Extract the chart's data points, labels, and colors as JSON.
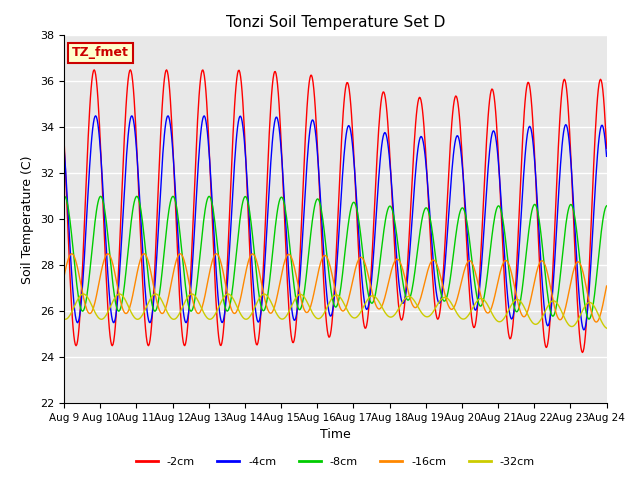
{
  "title": "Tonzi Soil Temperature Set D",
  "xlabel": "Time",
  "ylabel": "Soil Temperature (C)",
  "ylim": [
    22,
    38
  ],
  "annotation": "TZ_fmet",
  "annotation_color": "#cc0000",
  "annotation_bg": "#ffffcc",
  "bg_color": "#e8e8e8",
  "line_colors": {
    "-2cm": "#ff0000",
    "-4cm": "#0000ff",
    "-8cm": "#00cc00",
    "-16cm": "#ff8800",
    "-32cm": "#cccc00"
  },
  "legend_labels": [
    "-2cm",
    "-4cm",
    "-8cm",
    "-16cm",
    "-32cm"
  ],
  "n_days": 15,
  "points_per_day": 48,
  "base_temps": [
    30.5,
    30.0,
    28.5,
    27.2,
    26.2
  ],
  "amplitudes": [
    6.0,
    4.5,
    2.5,
    1.3,
    0.55
  ],
  "phase_shifts": [
    0.0,
    0.04,
    0.18,
    0.38,
    0.7
  ],
  "amp_reduction": [
    0.0,
    0.0,
    0.0,
    0.0,
    0.0
  ],
  "tick_days": [
    "Aug 9",
    "Aug 10",
    "Aug 11",
    "Aug 12",
    "Aug 13",
    "Aug 14",
    "Aug 15",
    "Aug 16",
    "Aug 17",
    "Aug 18",
    "Aug 19",
    "Aug 20",
    "Aug 21",
    "Aug 22",
    "Aug 23",
    "Aug 24"
  ]
}
